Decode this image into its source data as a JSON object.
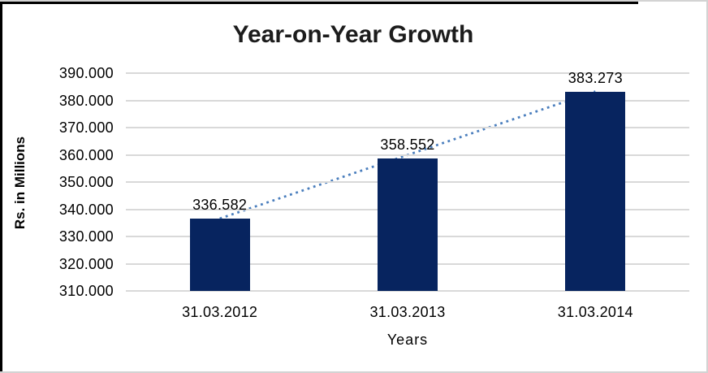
{
  "chart_data": {
    "type": "bar",
    "title": "Year-on-Year Growth",
    "xlabel": "Years",
    "ylabel": "Rs. in Millions",
    "categories": [
      "31.03.2012",
      "31.03.2013",
      "31.03.2014"
    ],
    "values": [
      336.582,
      358.552,
      383.273
    ],
    "data_labels": [
      "336.582",
      "358.552",
      "383.273"
    ],
    "ylim": [
      310,
      390
    ],
    "ytick_step": 10,
    "ytick_labels": [
      "390.000",
      "380.000",
      "370.000",
      "360.000",
      "350.000",
      "340.000",
      "330.000",
      "320.000",
      "310.000"
    ],
    "grid": "horizontal-only",
    "legend": "none",
    "trendline": {
      "style": "dotted",
      "from_category": "31.03.2012",
      "from_value": 336.582,
      "to_category": "31.03.2014",
      "to_value": 383.273
    },
    "colors": {
      "bar": "#07245f",
      "trendline": "#4a7ebd",
      "gridline": "#d9d9d9",
      "text": "#000000",
      "title": "#1c1c1c",
      "outer_border_dark": "#000000",
      "outer_border_light": "#d3d3d3"
    }
  }
}
